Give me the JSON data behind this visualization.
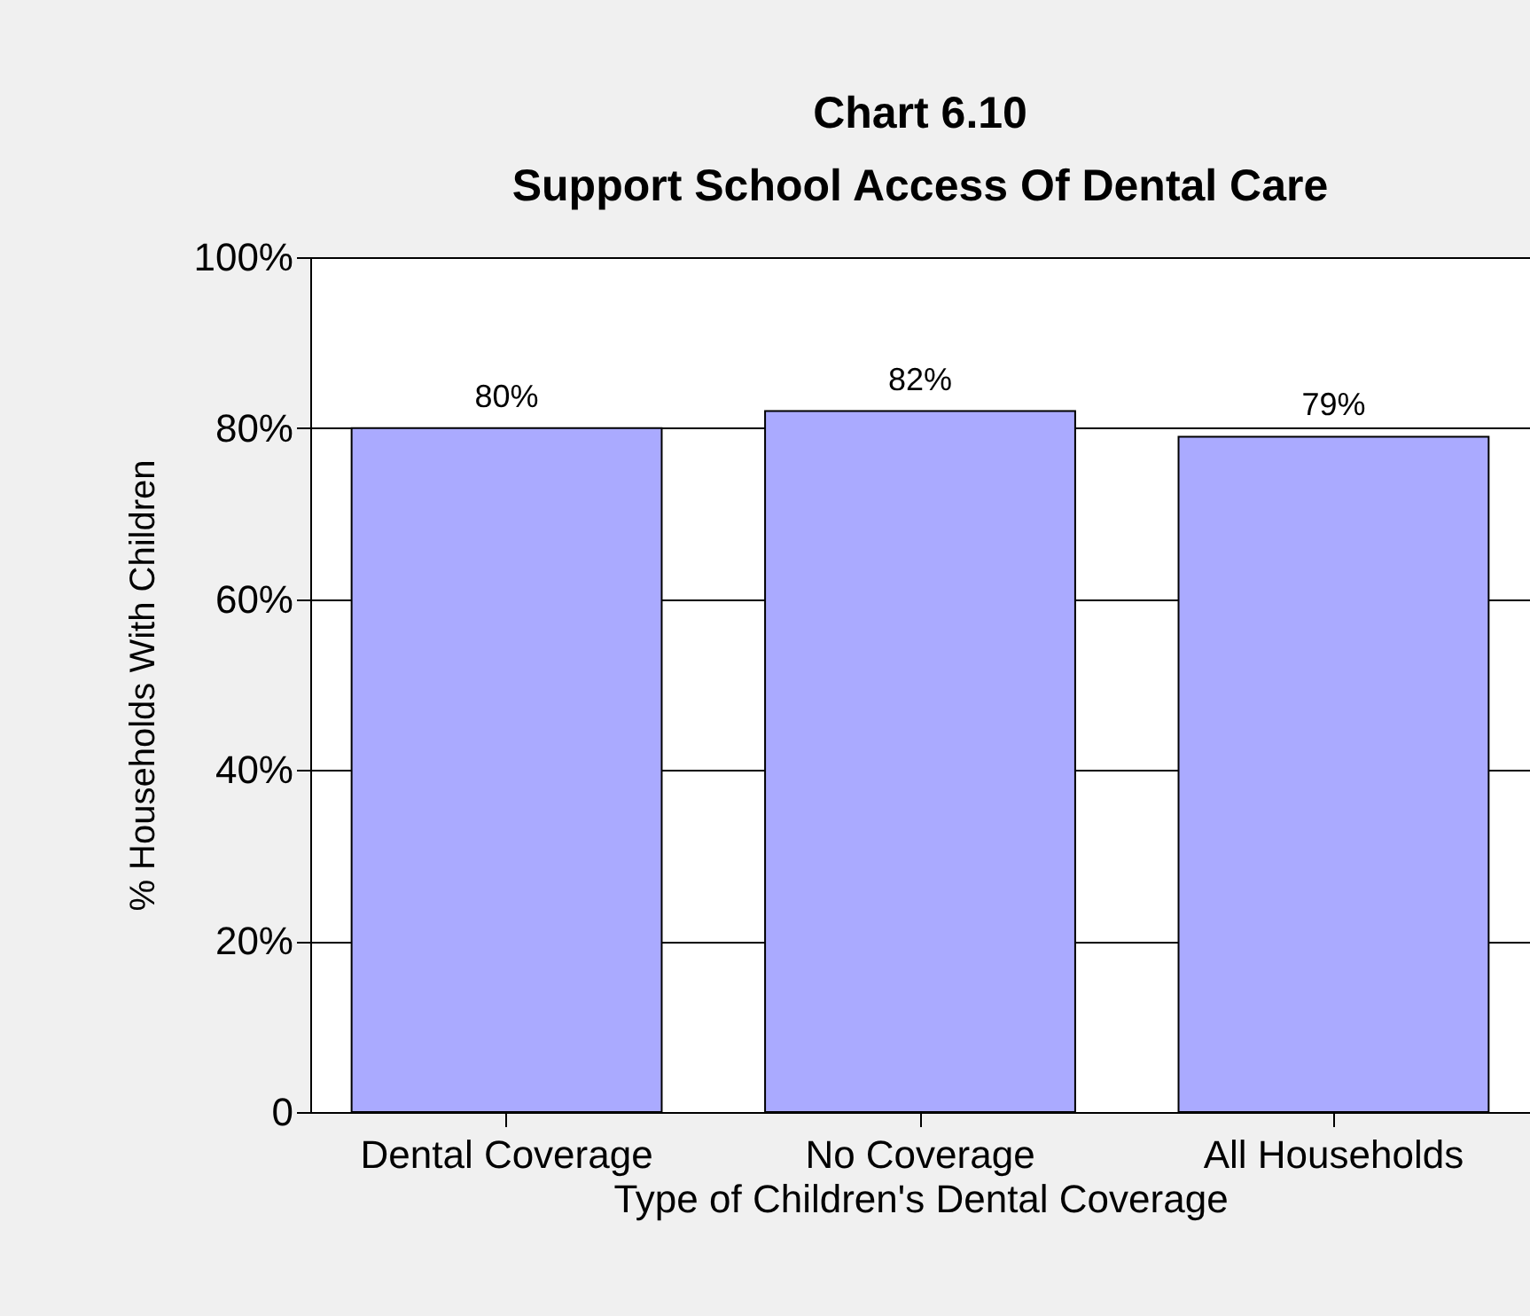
{
  "chart_data": {
    "type": "bar",
    "title": "Chart 6.10",
    "subtitle": "Support School Access Of Dental Care",
    "xlabel": "Type of Children's Dental Coverage",
    "ylabel": "% Households With Children",
    "categories": [
      "Dental Coverage",
      "No Coverage",
      "All Households"
    ],
    "values": [
      80,
      82,
      79
    ],
    "value_labels": [
      "80%",
      "82%",
      "79%"
    ],
    "color": "#aaaaff",
    "ylim": [
      0,
      100
    ],
    "yticks": [
      {
        "value": 0,
        "label": "0"
      },
      {
        "value": 20,
        "label": "20%"
      },
      {
        "value": 40,
        "label": "40%"
      },
      {
        "value": 60,
        "label": "60%"
      },
      {
        "value": 80,
        "label": "80%"
      },
      {
        "value": 100,
        "label": "100%"
      }
    ],
    "grid": "y"
  }
}
